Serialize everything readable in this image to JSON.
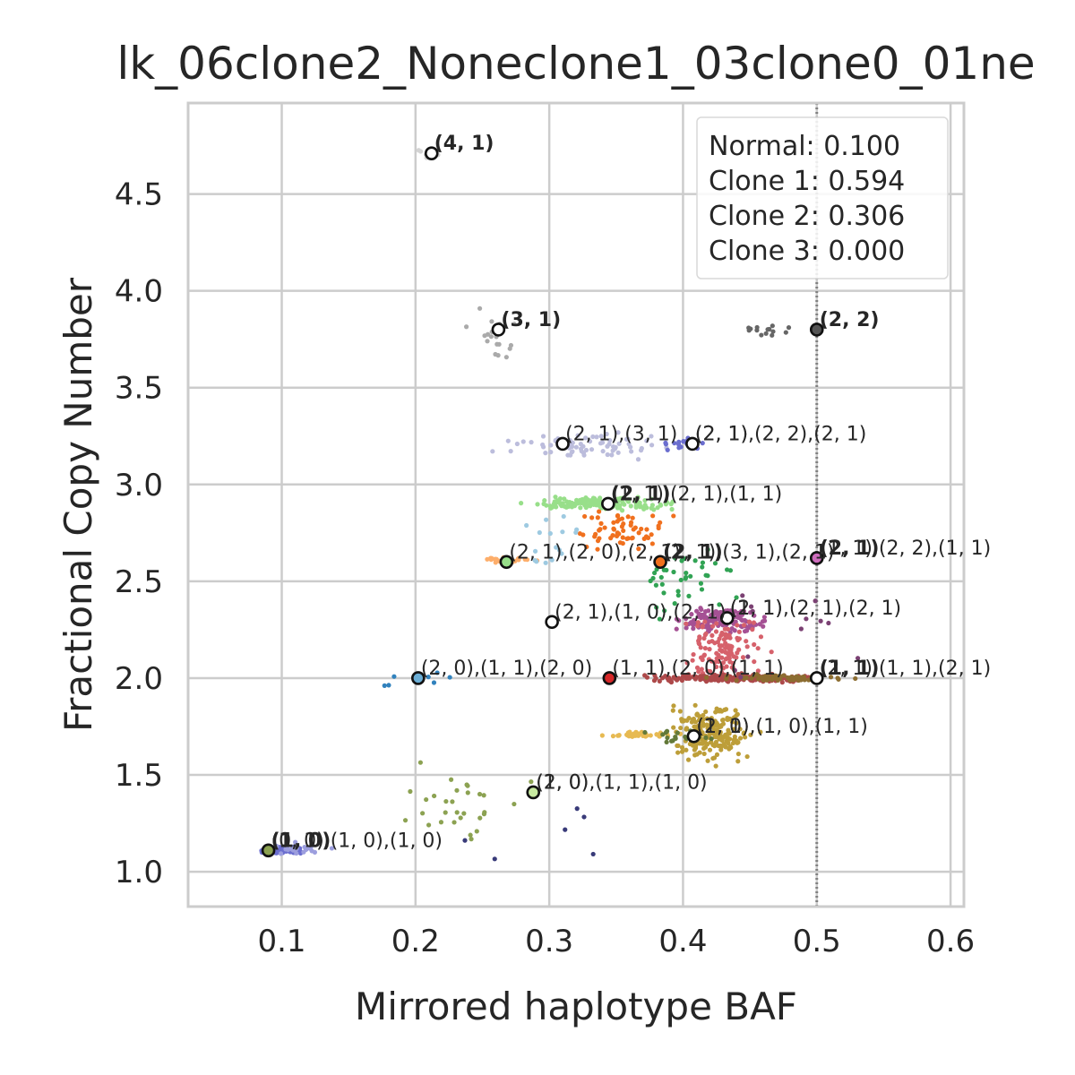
{
  "chart_data": {
    "type": "scatter",
    "title": "lk_06clone2_Noneclone1_03clone0_01ne",
    "xlabel": "Mirrored haplotype BAF",
    "ylabel": "Fractional Copy Number",
    "xlim": [
      0.03,
      0.61
    ],
    "ylim": [
      0.82,
      4.97
    ],
    "xticks": [
      "0.1",
      "0.2",
      "0.3",
      "0.4",
      "0.5",
      "0.6"
    ],
    "xtick_values": [
      0.1,
      0.2,
      0.3,
      0.4,
      0.5,
      0.6
    ],
    "yticks": [
      "1.0",
      "1.5",
      "2.0",
      "2.5",
      "3.0",
      "3.5",
      "4.0",
      "4.5"
    ],
    "ytick_values": [
      1.0,
      1.5,
      2.0,
      2.5,
      3.0,
      3.5,
      4.0,
      4.5
    ],
    "grid": true,
    "legend_position": "top-right",
    "legend": [
      "Normal: 0.100",
      "Clone 1: 0.594",
      "Clone 2: 0.306",
      "Clone 3: 0.000"
    ],
    "vline": {
      "x": 0.5,
      "style": "dotted",
      "color": "#808080"
    },
    "clusters": [
      {
        "color": "#d3d3d3",
        "cx": 0.21,
        "cy": 4.71,
        "sx": 0.008,
        "sy": 0.02,
        "n": 12
      },
      {
        "color": "#aaaaaa",
        "cx": 0.26,
        "cy": 3.75,
        "sx": 0.012,
        "sy": 0.1,
        "n": 22
      },
      {
        "color": "#666666",
        "cx": 0.46,
        "cy": 3.8,
        "sx": 0.012,
        "sy": 0.02,
        "n": 14
      },
      {
        "color": "#bcbddc",
        "cx": 0.33,
        "cy": 3.2,
        "sx": 0.04,
        "sy": 0.04,
        "n": 70
      },
      {
        "color": "#6b6ecf",
        "cx": 0.4,
        "cy": 3.21,
        "sx": 0.015,
        "sy": 0.02,
        "n": 18
      },
      {
        "color": "#98df8a",
        "cx": 0.34,
        "cy": 2.9,
        "sx": 0.035,
        "sy": 0.02,
        "n": 160
      },
      {
        "color": "#f0701e",
        "cx": 0.35,
        "cy": 2.75,
        "sx": 0.025,
        "sy": 0.08,
        "n": 60
      },
      {
        "color": "#fdae6b",
        "cx": 0.27,
        "cy": 2.61,
        "sx": 0.012,
        "sy": 0.01,
        "n": 30
      },
      {
        "color": "#9ecae1",
        "cx": 0.3,
        "cy": 2.7,
        "sx": 0.02,
        "sy": 0.1,
        "n": 18
      },
      {
        "color": "#31a354",
        "cx": 0.4,
        "cy": 2.5,
        "sx": 0.025,
        "sy": 0.12,
        "n": 40
      },
      {
        "color": "#a55194",
        "cx": 0.43,
        "cy": 2.3,
        "sx": 0.02,
        "sy": 0.05,
        "n": 130
      },
      {
        "color": "#d6616b",
        "cx": 0.43,
        "cy": 2.15,
        "sx": 0.02,
        "sy": 0.12,
        "n": 120
      },
      {
        "color": "#ad494a",
        "cx": 0.44,
        "cy": 2.0,
        "sx": 0.04,
        "sy": 0.012,
        "n": 260
      },
      {
        "color": "#8c6d31",
        "cx": 0.47,
        "cy": 2.0,
        "sx": 0.03,
        "sy": 0.01,
        "n": 80
      },
      {
        "color": "#bd9e39",
        "cx": 0.42,
        "cy": 1.72,
        "sx": 0.02,
        "sy": 0.1,
        "n": 200
      },
      {
        "color": "#e7ba52",
        "cx": 0.37,
        "cy": 1.71,
        "sx": 0.02,
        "sy": 0.01,
        "n": 40
      },
      {
        "color": "#3182bd",
        "cx": 0.2,
        "cy": 2.0,
        "sx": 0.02,
        "sy": 0.03,
        "n": 8
      },
      {
        "color": "#6b6ecf",
        "cx": 0.1,
        "cy": 1.11,
        "sx": 0.012,
        "sy": 0.012,
        "n": 55
      },
      {
        "color": "#9c9ede",
        "cx": 0.11,
        "cy": 1.12,
        "sx": 0.015,
        "sy": 0.02,
        "n": 25
      },
      {
        "color": "#8ca252",
        "cx": 0.23,
        "cy": 1.35,
        "sx": 0.04,
        "sy": 0.15,
        "n": 30
      },
      {
        "color": "#637939",
        "cx": 0.4,
        "cy": 1.7,
        "sx": 0.02,
        "sy": 0.02,
        "n": 20
      },
      {
        "color": "#393b79",
        "cx": 0.3,
        "cy": 1.2,
        "sx": 0.05,
        "sy": 0.15,
        "n": 6
      },
      {
        "color": "#7b4173",
        "cx": 0.48,
        "cy": 2.25,
        "sx": 0.04,
        "sy": 0.2,
        "n": 12
      }
    ],
    "points": [
      {
        "x": 0.212,
        "y": 4.71,
        "color": "#ffffff"
      },
      {
        "x": 0.262,
        "y": 3.8,
        "color": "#ffffff"
      },
      {
        "x": 0.5,
        "y": 3.8,
        "color": "#555555"
      },
      {
        "x": 0.31,
        "y": 3.21,
        "color": "#ffffff"
      },
      {
        "x": 0.407,
        "y": 3.21,
        "color": "#ffffff"
      },
      {
        "x": 0.344,
        "y": 2.9,
        "color": "#ffffff"
      },
      {
        "x": 0.268,
        "y": 2.6,
        "color": "#98df8a"
      },
      {
        "x": 0.383,
        "y": 2.6,
        "color": "#f0701e"
      },
      {
        "x": 0.5,
        "y": 2.62,
        "color": "#ce6dbd"
      },
      {
        "x": 0.302,
        "y": 2.29,
        "color": "#ffffff"
      },
      {
        "x": 0.433,
        "y": 2.31,
        "color": "#ffffff"
      },
      {
        "x": 0.202,
        "y": 2.0,
        "color": "#6baed6"
      },
      {
        "x": 0.345,
        "y": 2.0,
        "color": "#d62728"
      },
      {
        "x": 0.5,
        "y": 2.0,
        "color": "#ffffff"
      },
      {
        "x": 0.408,
        "y": 1.7,
        "color": "#ffffff"
      },
      {
        "x": 0.288,
        "y": 1.41,
        "color": "#c7e9a0"
      },
      {
        "x": 0.09,
        "y": 1.11,
        "color": "#8ca252"
      }
    ],
    "annotations": [
      {
        "x": 0.212,
        "y": 4.71,
        "text": "(4, 1)",
        "bold": true
      },
      {
        "x": 0.262,
        "y": 3.8,
        "text": "(3, 1)",
        "bold": true
      },
      {
        "x": 0.5,
        "y": 3.8,
        "text": "(2, 2)",
        "bold": true
      },
      {
        "x": 0.31,
        "y": 3.21,
        "text": "(2, 1),(3, 1)",
        "bold": false
      },
      {
        "x": 0.407,
        "y": 3.21,
        "text": "(2, 1),(2, 2),(2, 1)",
        "bold": false
      },
      {
        "x": 0.407,
        "y": 3.21,
        "text": "(2, 1)",
        "bold": false
      },
      {
        "x": 0.344,
        "y": 2.9,
        "text": "(2, 1)",
        "bold": true
      },
      {
        "x": 0.344,
        "y": 2.9,
        "text": "(1, 1),(2, 1),(1, 1)",
        "bold": false
      },
      {
        "x": 0.268,
        "y": 2.6,
        "text": "(2, 1),(2, 0),(2, 1)",
        "bold": false
      },
      {
        "x": 0.383,
        "y": 2.6,
        "text": "(2, 1)",
        "bold": true
      },
      {
        "x": 0.383,
        "y": 2.6,
        "text": "(2, 1),(3, 1),(2, 1)",
        "bold": false
      },
      {
        "x": 0.5,
        "y": 2.62,
        "text": "(2, 1)",
        "bold": true
      },
      {
        "x": 0.5,
        "y": 2.62,
        "text": "(1, 1),(2, 2),(1, 1)",
        "bold": false
      },
      {
        "x": 0.302,
        "y": 2.29,
        "text": "(2, 1),(1, 0),(2, 1)",
        "bold": false
      },
      {
        "x": 0.433,
        "y": 2.31,
        "text": "(1, 1),(2, 1),(2, 1)",
        "bold": false
      },
      {
        "x": 0.433,
        "y": 2.31,
        "text": "(2, 1)",
        "bold": false
      },
      {
        "x": 0.202,
        "y": 2.0,
        "text": "(2, 0),(1, 1),(2, 0)",
        "bold": false
      },
      {
        "x": 0.345,
        "y": 2.0,
        "text": "(1, 1),(2, 0),(1, 1)",
        "bold": false
      },
      {
        "x": 0.5,
        "y": 2.0,
        "text": "(1, 1)",
        "bold": true
      },
      {
        "x": 0.5,
        "y": 2.0,
        "text": "(2, 1),(1, 1),(2, 1)",
        "bold": false
      },
      {
        "x": 0.408,
        "y": 1.7,
        "text": "(1, 1),(1, 0),(1, 1)",
        "bold": false
      },
      {
        "x": 0.408,
        "y": 1.7,
        "text": "(2, 0)",
        "bold": false
      },
      {
        "x": 0.288,
        "y": 1.41,
        "text": "(1, 0),(1, 1),(1, 0)",
        "bold": false
      },
      {
        "x": 0.288,
        "y": 1.41,
        "text": "(2, 0)",
        "bold": false
      },
      {
        "x": 0.09,
        "y": 1.11,
        "text": "(1, 0)",
        "bold": true
      },
      {
        "x": 0.09,
        "y": 1.11,
        "text": "(1, 0),(1, 0),(1, 0)",
        "bold": false
      },
      {
        "x": 0.09,
        "y": 1.11,
        "text": "(0, 1)",
        "bold": false
      }
    ]
  }
}
